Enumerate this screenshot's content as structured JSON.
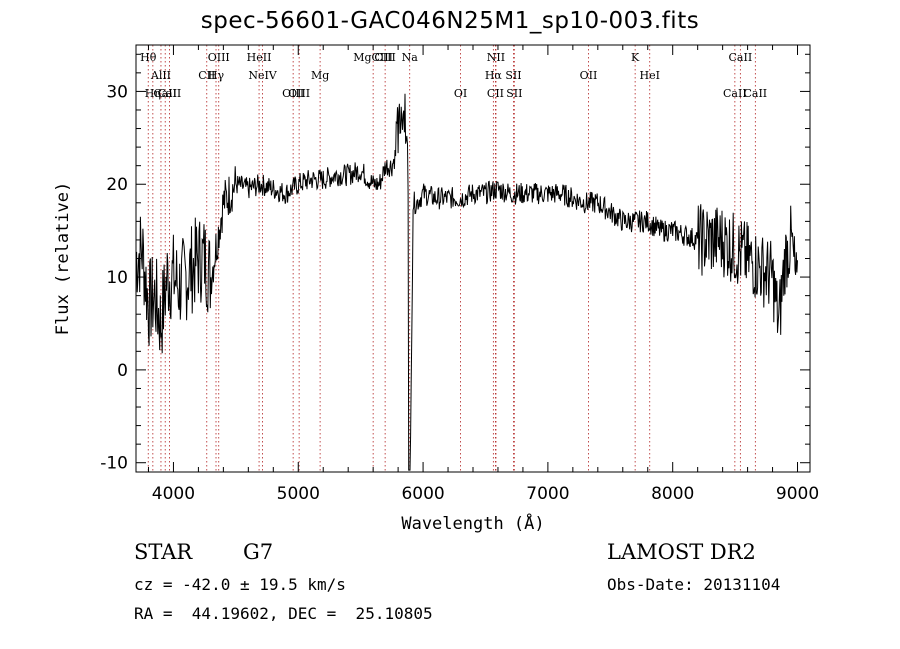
{
  "title": "spec-56601-GAC046N25M1_sp10-003.fits",
  "chart_data": {
    "type": "line",
    "title": "spec-56601-GAC046N25M1_sp10-003.fits",
    "xlabel": "Wavelength (Å)",
    "ylabel": "Flux (relative)",
    "xlim": [
      3700,
      9100
    ],
    "ylim": [
      -11,
      35
    ],
    "xticks": [
      4000,
      5000,
      6000,
      7000,
      8000,
      9000
    ],
    "yticks": [
      -10,
      0,
      10,
      20,
      30
    ],
    "grid": false,
    "series": [
      {
        "x": [
          3700,
          3750,
          3800,
          3850,
          3900,
          3950,
          4000,
          4050,
          4100,
          4150,
          4200,
          4250,
          4300,
          4350,
          4400,
          4450,
          4500,
          4600,
          4700,
          4800,
          4900,
          5000,
          5100,
          5200,
          5300,
          5400,
          5500,
          5600,
          5650,
          5700,
          5750,
          5800,
          5850,
          5880,
          5900,
          5920,
          5950,
          6000,
          6100,
          6200,
          6300,
          6400,
          6500,
          6600,
          6700,
          6800,
          6900,
          7000,
          7100,
          7200,
          7300,
          7400,
          7500,
          7600,
          7700,
          7800,
          7900,
          8000,
          8100,
          8200,
          8300,
          8400,
          8500,
          8600,
          8700,
          8800,
          8850,
          8900,
          8950,
          9000
        ],
        "y": [
          12,
          13,
          7,
          8,
          5,
          10,
          10,
          9,
          10,
          11,
          12,
          12,
          10,
          14,
          18,
          19,
          20,
          19.5,
          20,
          19.5,
          19,
          20,
          20.5,
          20.5,
          21,
          21,
          21.5,
          20,
          20,
          22,
          22,
          24,
          28,
          20,
          -8,
          18,
          18,
          19,
          18.5,
          18.5,
          18.5,
          19,
          19,
          19.5,
          19,
          19,
          19,
          19,
          19,
          18.5,
          18,
          18,
          17,
          16,
          16,
          16,
          15,
          15,
          14.5,
          14,
          14,
          14,
          13,
          12,
          11,
          10,
          5,
          12,
          14,
          8
        ]
      }
    ],
    "lines": [
      {
        "name": "Hθ",
        "x": 3798,
        "row": 1
      },
      {
        "name": "Hη",
        "x": 3835,
        "row": 3
      },
      {
        "name": "AlII",
        "x": 3900,
        "row": 2
      },
      {
        "name": "CaII",
        "x": 3934,
        "row": 3
      },
      {
        "name": "CaII",
        "x": 3968,
        "row": 3
      },
      {
        "name": "CII",
        "x": 4267,
        "row": 2
      },
      {
        "name": "OIII",
        "x": 4363,
        "row": 1
      },
      {
        "name": "Hγ",
        "x": 4341,
        "row": 2
      },
      {
        "name": "HeII",
        "x": 4686,
        "row": 1
      },
      {
        "name": "NeIV",
        "x": 4714,
        "row": 2
      },
      {
        "name": "OIII",
        "x": 4959,
        "row": 3
      },
      {
        "name": "OIII",
        "x": 5007,
        "row": 3
      },
      {
        "name": "Mg",
        "x": 5175,
        "row": 2
      },
      {
        "name": "MgCIII",
        "x": 5600,
        "row": 1
      },
      {
        "name": "CIII",
        "x": 5696,
        "row": 1
      },
      {
        "name": "Na",
        "x": 5893,
        "row": 1
      },
      {
        "name": "NII",
        "x": 6584,
        "row": 1
      },
      {
        "name": "Hα",
        "x": 6563,
        "row": 2
      },
      {
        "name": "SII",
        "x": 6724,
        "row": 2
      },
      {
        "name": "OI",
        "x": 6300,
        "row": 3
      },
      {
        "name": "SII",
        "x": 6731,
        "row": 3
      },
      {
        "name": "CII",
        "x": 6580,
        "row": 3
      },
      {
        "name": "OII",
        "x": 7325,
        "row": 2
      },
      {
        "name": "K",
        "x": 7699,
        "row": 1
      },
      {
        "name": "HeI",
        "x": 7816,
        "row": 2
      },
      {
        "name": "CaII",
        "x": 8542,
        "row": 1
      },
      {
        "name": "CaII",
        "x": 8498,
        "row": 3
      },
      {
        "name": "CaII",
        "x": 8662,
        "row": 3
      }
    ]
  },
  "info": {
    "class_label": "STAR",
    "subclass": "G7",
    "cz": "cz = -42.0 ± 19.5 km/s",
    "radec": "RA =  44.19602, DEC =  25.10805",
    "survey": "LAMOST DR2",
    "obs_date": "Obs-Date: 20131104"
  }
}
